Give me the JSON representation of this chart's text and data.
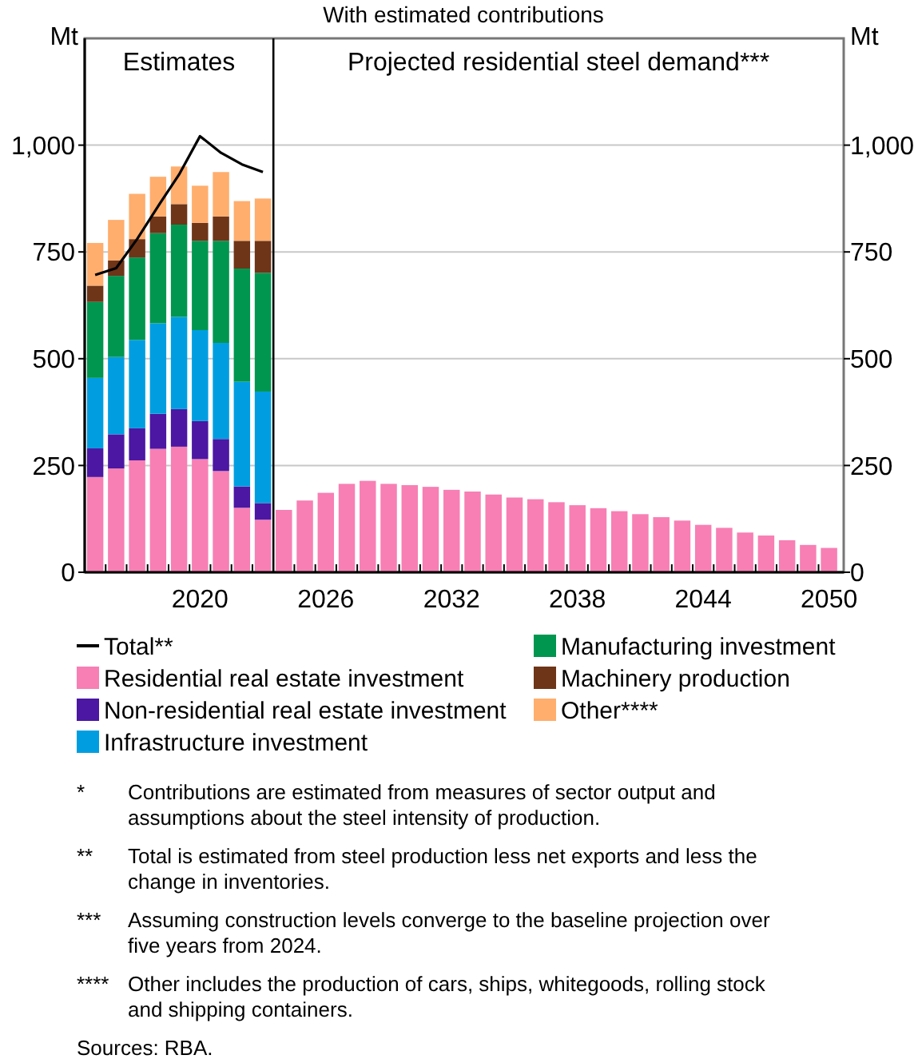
{
  "chart_data": {
    "type": "bar",
    "title": "With estimated contributions",
    "stacked": true,
    "x": [
      2015,
      2016,
      2017,
      2018,
      2019,
      2020,
      2021,
      2022,
      2023,
      2024,
      2025,
      2026,
      2027,
      2028,
      2029,
      2030,
      2031,
      2032,
      2033,
      2034,
      2035,
      2036,
      2037,
      2038,
      2039,
      2040,
      2041,
      2042,
      2043,
      2044,
      2045,
      2046,
      2047,
      2048,
      2049,
      2050
    ],
    "xlim": [
      2014.5,
      2050.7
    ],
    "xticks": [
      {
        "value": 2015.5,
        "label": null
      },
      {
        "value": 2016.5,
        "label": null
      },
      {
        "value": 2017.5,
        "label": null
      },
      {
        "value": 2018.5,
        "label": null
      },
      {
        "value": 2019.5,
        "label": null
      },
      2020,
      {
        "value": 2020.5,
        "label": null
      },
      {
        "value": 2021.5,
        "label": null
      },
      {
        "value": 2022.5,
        "label": null
      },
      {
        "value": 2024.5,
        "label": null
      },
      {
        "value": 2025.5,
        "label": null
      },
      2026,
      {
        "value": 2026.5,
        "label": null
      },
      {
        "value": 2027.5,
        "label": null
      },
      {
        "value": 2028.5,
        "label": null
      },
      {
        "value": 2029.5,
        "label": null
      },
      {
        "value": 2030.5,
        "label": null
      },
      {
        "value": 2031.5,
        "label": null
      },
      2032,
      {
        "value": 2032.5,
        "label": null
      },
      {
        "value": 2033.5,
        "label": null
      },
      {
        "value": 2034.5,
        "label": null
      },
      {
        "value": 2035.5,
        "label": null
      },
      {
        "value": 2036.5,
        "label": null
      },
      {
        "value": 2037.5,
        "label": null
      },
      2038,
      {
        "value": 2038.5,
        "label": null
      },
      {
        "value": 2039.5,
        "label": null
      },
      {
        "value": 2040.5,
        "label": null
      },
      {
        "value": 2041.5,
        "label": null
      },
      {
        "value": 2042.5,
        "label": null
      },
      {
        "value": 2043.5,
        "label": null
      },
      2044,
      {
        "value": 2044.5,
        "label": null
      },
      {
        "value": 2045.5,
        "label": null
      },
      {
        "value": 2046.5,
        "label": null
      },
      {
        "value": 2047.5,
        "label": null
      },
      {
        "value": 2048.5,
        "label": null
      },
      {
        "value": 2049.5,
        "label": null
      },
      2050
    ],
    "ylim": [
      0,
      1250
    ],
    "yticks": [
      0,
      250,
      500,
      750,
      {
        "value": 1000,
        "label": "1,000"
      }
    ],
    "y2lim": [
      0,
      1250
    ],
    "y2ticks": [
      0,
      250,
      500,
      750,
      {
        "value": 1000,
        "label": "1,000"
      }
    ],
    "ylabel": "Mt",
    "y2label": "Mt",
    "grid": "y",
    "legend": "bottom",
    "ref_lines": [
      {
        "axis": "x",
        "value": 2023.5,
        "color": "#000000"
      }
    ],
    "series": [
      {
        "name": "Residential real estate investment",
        "color": "#f77fb4",
        "values": [
          223,
          243,
          262,
          289,
          294,
          265,
          237,
          151,
          123,
          146,
          168,
          186,
          207,
          214,
          207,
          204,
          200,
          193,
          189,
          182,
          175,
          171,
          164,
          157,
          150,
          143,
          136,
          129,
          121,
          111,
          104,
          93,
          86,
          75,
          64,
          57
        ]
      },
      {
        "name": "Non-residential real estate investment",
        "color": "#4b17a3",
        "values": [
          67,
          80,
          75,
          82,
          88,
          89,
          75,
          50,
          39,
          null,
          null,
          null,
          null,
          null,
          null,
          null,
          null,
          null,
          null,
          null,
          null,
          null,
          null,
          null,
          null,
          null,
          null,
          null,
          null,
          null,
          null,
          null,
          null,
          null,
          null,
          null
        ]
      },
      {
        "name": "Infrastructure investment",
        "color": "#009ee0",
        "values": [
          165,
          181,
          207,
          212,
          216,
          213,
          225,
          245,
          261,
          null,
          null,
          null,
          null,
          null,
          null,
          null,
          null,
          null,
          null,
          null,
          null,
          null,
          null,
          null,
          null,
          null,
          null,
          null,
          null,
          null,
          null,
          null,
          null,
          null,
          null,
          null
        ]
      },
      {
        "name": "Manufacturing investment",
        "color": "#009650",
        "values": [
          178,
          190,
          193,
          211,
          216,
          209,
          239,
          265,
          278,
          null,
          null,
          null,
          null,
          null,
          null,
          null,
          null,
          null,
          null,
          null,
          null,
          null,
          null,
          null,
          null,
          null,
          null,
          null,
          null,
          null,
          null,
          null,
          null,
          null,
          null,
          null
        ]
      },
      {
        "name": "Machinery production",
        "color": "#6e3518",
        "values": [
          38,
          36,
          43,
          39,
          48,
          42,
          57,
          65,
          75,
          null,
          null,
          null,
          null,
          null,
          null,
          null,
          null,
          null,
          null,
          null,
          null,
          null,
          null,
          null,
          null,
          null,
          null,
          null,
          null,
          null,
          null,
          null,
          null,
          null,
          null,
          null
        ]
      },
      {
        "name": "Other****",
        "color": "#ffae6e",
        "values": [
          100,
          95,
          106,
          93,
          88,
          87,
          104,
          93,
          99,
          null,
          null,
          null,
          null,
          null,
          null,
          null,
          null,
          null,
          null,
          null,
          null,
          null,
          null,
          null,
          null,
          null,
          null,
          null,
          null,
          null,
          null,
          null,
          null,
          null,
          null,
          null
        ]
      },
      {
        "name": "Total**",
        "type": "line",
        "color": "#000000",
        "x": [
          2015,
          2016,
          2017,
          2018,
          2019,
          2020,
          2021,
          2022,
          2023
        ],
        "values": [
          696,
          712,
          780,
          857,
          931,
          1021,
          982,
          955,
          937
        ]
      }
    ],
    "annotations": [
      "Estimates",
      "Projected residential steel demand***",
      "* Contributions are estimated from measures of sector output and assumptions about the steel intensity of production.",
      "** Total is estimated from steel production less net exports and less the change in inventories.",
      "*** Assuming construction levels converge to the baseline projection over five years from 2024.",
      "**** Other includes the production of cars, ships, whitegoods, rolling stock and shipping containers.",
      "Sources: RBA."
    ]
  }
}
